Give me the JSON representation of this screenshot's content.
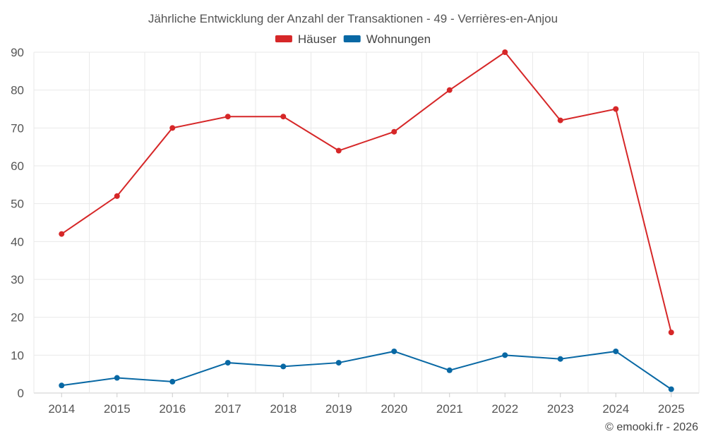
{
  "chart_data": {
    "type": "line",
    "title": "Jährliche Entwicklung der Anzahl der Transaktionen - 49 - Verrières-en-Anjou",
    "categories": [
      "2014",
      "2015",
      "2016",
      "2017",
      "2018",
      "2019",
      "2020",
      "2021",
      "2022",
      "2023",
      "2024",
      "2025"
    ],
    "series": [
      {
        "name": "Häuser",
        "color": "#d62728",
        "values": [
          42,
          52,
          70,
          73,
          73,
          64,
          69,
          80,
          90,
          72,
          75,
          16
        ]
      },
      {
        "name": "Wohnungen",
        "color": "#0868a4",
        "values": [
          2,
          4,
          3,
          8,
          7,
          8,
          11,
          6,
          10,
          9,
          11,
          1
        ]
      }
    ],
    "ylim": [
      0,
      90
    ],
    "yticks": [
      0,
      10,
      20,
      30,
      40,
      50,
      60,
      70,
      80,
      90
    ],
    "xlabel": "",
    "ylabel": "",
    "grid": true,
    "legend": "top-center"
  },
  "credit": "© emooki.fr - 2026"
}
